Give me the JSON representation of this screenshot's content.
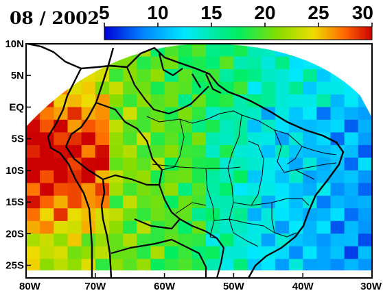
{
  "title": "08 / 2002",
  "colorbar": {
    "min": 5,
    "max": 30,
    "tick_labels": [
      "5",
      "10",
      "15",
      "20",
      "25",
      "30"
    ],
    "tick_values": [
      5,
      10,
      15,
      20,
      25,
      30
    ],
    "colors": [
      "#0000d8",
      "#0088ff",
      "#00e8ff",
      "#00ee60",
      "#88dd00",
      "#eedd00",
      "#ff6600",
      "#cc0000"
    ]
  },
  "map": {
    "lon_range": [
      -80,
      -30
    ],
    "lat_range": [
      -27,
      10
    ],
    "lon_tick_labels": [
      "80W",
      "70W",
      "60W",
      "50W",
      "40W",
      "30W"
    ],
    "lon_tick_values": [
      -80,
      -70,
      -60,
      -50,
      -40,
      -30
    ],
    "lat_tick_labels": [
      "10N",
      "5N",
      "EQ",
      "5S",
      "10S",
      "15S",
      "20S",
      "25S"
    ],
    "lat_tick_values": [
      10,
      5,
      0,
      -5,
      -10,
      -15,
      -20,
      -25
    ]
  },
  "chart_data": {
    "type": "heatmap",
    "title": "08 / 2002",
    "value_range": [
      5,
      30
    ],
    "x_range": [
      -80,
      -30
    ],
    "y_range": [
      -27,
      10
    ],
    "description_scale": "colour scale 5 to 30"
  }
}
